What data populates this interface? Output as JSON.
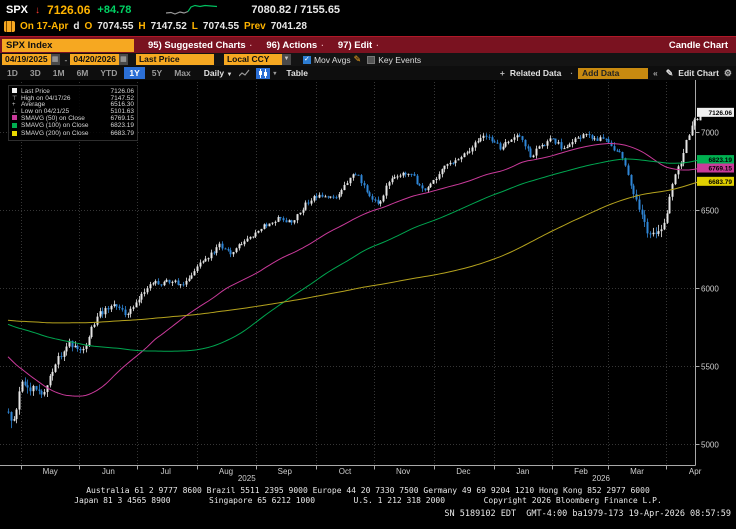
{
  "header": {
    "ticker": "SPX",
    "arrow": "↓",
    "price": "7126.06",
    "change": "+84.78",
    "spark_gray": "0,9 5,8.5 9,10 14,8 18,9 22,7.5",
    "spark_green": "22,7.5 25,3 29,1.5 34,2.5 39,1.5 45,2 51,2.5",
    "range": "7080.82 / 7155.65",
    "row2": {
      "on": "On 17-Apr",
      "d": "d",
      "o_label": "O",
      "o": "7074.55",
      "h_label": "H",
      "h": "7147.52",
      "l_label": "L",
      "l": "7074.55",
      "prev_label": "Prev",
      "prev": "7041.28"
    }
  },
  "menubar": {
    "security": "SPX Index",
    "items": [
      {
        "num": "95)",
        "label": "Suggested Charts",
        "dot": "·"
      },
      {
        "num": "96)",
        "label": "Actions",
        "dot": "·"
      },
      {
        "num": "97)",
        "label": "Edit",
        "dot": "·"
      }
    ],
    "right": "Candle Chart"
  },
  "toolbar": {
    "date_from": "04/19/2025",
    "dash": "-",
    "date_to": "04/20/2026",
    "field": "Last Price",
    "currency": "Local CCY",
    "mov_avgs_checked": "✓",
    "mov_avgs": "Mov Avgs",
    "pencil": "✎",
    "key_events": "Key Events",
    "cal_icon": "▦",
    "dd_icon": "▼"
  },
  "tabsrow": {
    "periods": [
      "1D",
      "3D",
      "1M",
      "6M",
      "YTD",
      "1Y",
      "5Y",
      "Max"
    ],
    "active": "1Y",
    "frequency": "Daily",
    "freq_carat": "▼",
    "table": "Table",
    "plus": "+",
    "related": "Related Data",
    "dot": "·",
    "add_data": "Add Data",
    "guillemet": "«",
    "pencil": "✎",
    "edit_chart": "Edit Chart",
    "gear": "⚙"
  },
  "legend": {
    "rows": [
      {
        "glyph": "■",
        "color": "#f0f0f0",
        "label": "Last Price",
        "value": "7126.06"
      },
      {
        "glyph": "⊤",
        "color": "#cccccc",
        "label": "High on 04/17/26",
        "value": "7147.52"
      },
      {
        "glyph": "+",
        "color": "#cccccc",
        "label": "Average",
        "value": "6516.30"
      },
      {
        "glyph": "⊥",
        "color": "#cccccc",
        "label": "Low on 04/21/25",
        "value": "5101.63"
      },
      {
        "glyph": "■",
        "color": "#c93a9a",
        "label": "SMAVG (50)  on Close",
        "value": "6769.15"
      },
      {
        "glyph": "■",
        "color": "#00b050",
        "label": "SMAVG (100) on Close",
        "value": "6823.19"
      },
      {
        "glyph": "■",
        "color": "#e8d800",
        "label": "SMAVG (200) on Close",
        "value": "6683.79"
      }
    ]
  },
  "chart_data": {
    "type": "candlestick",
    "title": "SPX Index — 1Y Daily Candle Chart",
    "x_range": [
      "04/19/2025",
      "04/20/2026"
    ],
    "stats": {
      "last_price": 7126.06,
      "high": {
        "date": "04/17/26",
        "value": 7147.52
      },
      "average": 6516.3,
      "low": {
        "date": "04/21/25",
        "value": 5101.63
      },
      "smavg50": 6769.15,
      "smavg100": 6823.19,
      "smavg200": 6683.79,
      "day_open": 7074.55,
      "day_high": 7147.52,
      "day_low": 7074.55,
      "prev_close": 7041.28
    },
    "y_axis": {
      "ticks": [
        7000,
        6500,
        6000,
        5500,
        5000
      ],
      "grid": "dotted"
    },
    "months": [
      {
        "label": "May",
        "t": 0.019
      },
      {
        "label": "Jun",
        "t": 0.103
      },
      {
        "label": "Jul",
        "t": 0.186
      },
      {
        "label": "Aug",
        "t": 0.273
      },
      {
        "label": "Sep",
        "t": 0.358
      },
      {
        "label": "Oct",
        "t": 0.445
      },
      {
        "label": "Nov",
        "t": 0.529
      },
      {
        "label": "Dec",
        "t": 0.616
      },
      {
        "label": "Jan",
        "t": 0.702
      },
      {
        "label": "Feb",
        "t": 0.786
      },
      {
        "label": "Mar",
        "t": 0.867
      },
      {
        "label": "Apr",
        "t": 0.951
      }
    ],
    "years": [
      {
        "label": "2025",
        "t": 0.345
      },
      {
        "label": "2026",
        "t": 0.857
      }
    ],
    "anchors": [
      [
        0.0,
        5230
      ],
      [
        0.006,
        5160
      ],
      [
        0.02,
        5420
      ],
      [
        0.035,
        5380
      ],
      [
        0.05,
        5310
      ],
      [
        0.07,
        5560
      ],
      [
        0.09,
        5640
      ],
      [
        0.105,
        5600
      ],
      [
        0.13,
        5830
      ],
      [
        0.15,
        5880
      ],
      [
        0.17,
        5840
      ],
      [
        0.2,
        5990
      ],
      [
        0.23,
        6060
      ],
      [
        0.25,
        6020
      ],
      [
        0.28,
        6180
      ],
      [
        0.305,
        6260
      ],
      [
        0.32,
        6220
      ],
      [
        0.345,
        6300
      ],
      [
        0.37,
        6400
      ],
      [
        0.39,
        6450
      ],
      [
        0.41,
        6420
      ],
      [
        0.43,
        6540
      ],
      [
        0.45,
        6600
      ],
      [
        0.47,
        6560
      ],
      [
        0.49,
        6680
      ],
      [
        0.505,
        6740
      ],
      [
        0.52,
        6600
      ],
      [
        0.535,
        6560
      ],
      [
        0.55,
        6680
      ],
      [
        0.57,
        6760
      ],
      [
        0.585,
        6700
      ],
      [
        0.6,
        6620
      ],
      [
        0.615,
        6700
      ],
      [
        0.635,
        6800
      ],
      [
        0.655,
        6870
      ],
      [
        0.675,
        6930
      ],
      [
        0.695,
        6980
      ],
      [
        0.71,
        6900
      ],
      [
        0.725,
        6960
      ],
      [
        0.74,
        7000
      ],
      [
        0.755,
        6860
      ],
      [
        0.77,
        6920
      ],
      [
        0.785,
        6960
      ],
      [
        0.8,
        6900
      ],
      [
        0.815,
        6950
      ],
      [
        0.83,
        6990
      ],
      [
        0.845,
        6930
      ],
      [
        0.86,
        6960
      ],
      [
        0.875,
        6890
      ],
      [
        0.885,
        6840
      ],
      [
        0.895,
        6750
      ],
      [
        0.905,
        6620
      ],
      [
        0.915,
        6480
      ],
      [
        0.925,
        6330
      ],
      [
        0.935,
        6290
      ],
      [
        0.945,
        6420
      ],
      [
        0.955,
        6580
      ],
      [
        0.965,
        6720
      ],
      [
        0.975,
        6860
      ],
      [
        0.985,
        7000
      ],
      [
        0.995,
        7090
      ],
      [
        1.0,
        7126.06
      ]
    ],
    "history_anchors": [
      [
        -0.85,
        5450
      ],
      [
        -0.6,
        5700
      ],
      [
        -0.4,
        5850
      ],
      [
        -0.25,
        6020
      ],
      [
        -0.18,
        6090
      ],
      [
        -0.12,
        5850
      ],
      [
        -0.07,
        5300
      ],
      [
        -0.048,
        4950
      ],
      [
        -0.03,
        5060
      ],
      [
        -0.015,
        5180
      ],
      [
        -0.001,
        5230
      ]
    ],
    "vol_anchors": [
      [
        -0.85,
        55
      ],
      [
        -0.1,
        80
      ],
      [
        0.0,
        90
      ],
      [
        0.05,
        70
      ],
      [
        0.12,
        55
      ],
      [
        0.25,
        42
      ],
      [
        0.45,
        40
      ],
      [
        0.6,
        45
      ],
      [
        0.75,
        48
      ],
      [
        0.86,
        45
      ],
      [
        0.9,
        60
      ],
      [
        0.93,
        95
      ],
      [
        0.96,
        70
      ],
      [
        1.0,
        55
      ]
    ],
    "seed": 987654321,
    "n_days": 250,
    "n_history": 200,
    "overrides": {
      "early": {
        "i": 1,
        "low": 5101.63,
        "close": 5170
      },
      "last": {
        "o": 7074.55,
        "h": 7147.52,
        "l": 7074.55,
        "c": 7126.06
      }
    },
    "tags": [
      {
        "text": "7126.06",
        "price": 7126.06,
        "bg": "#f0f0f0",
        "fg": "#000"
      },
      {
        "text": "6823.19",
        "price": 6823.19,
        "bg": "#00b050",
        "fg": "#000"
      },
      {
        "text": "6769.15",
        "price": 6769.15,
        "bg": "#c93a9a",
        "fg": "#000"
      },
      {
        "text": "6683.79",
        "price": 6683.79,
        "bg": "#e0d000",
        "fg": "#000"
      }
    ],
    "colors": {
      "up": "#e6e6e6",
      "down": "#2f86d6",
      "ma50": "#c93a9a",
      "ma100": "#00a650",
      "ma200": "#b5a31e",
      "grid": "#363636",
      "axis": "#a8a8a8",
      "label": "#cfcfcf"
    }
  },
  "footer": {
    "line1": "Australia 61 2 9777 8600 Brazil 5511 2395 9000 Europe 44 20 7330 7500 Germany 49 69 9204 1210 Hong Kong 852 2977 6000",
    "line2": "Japan 81 3 4565 8900        Singapore 65 6212 1000        U.S. 1 212 318 2000        Copyright 2026 Bloomberg Finance L.P.",
    "status": "SN 5189102 EDT  GMT-4:00 ba1979-173 19-Apr-2026 08:57:59"
  }
}
